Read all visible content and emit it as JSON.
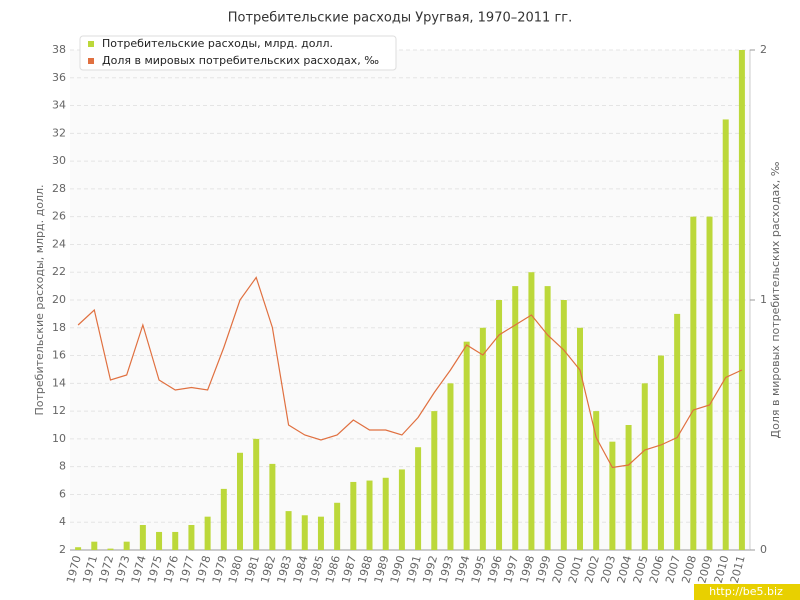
{
  "chart_data": {
    "type": "bar-line",
    "title": "Потребительские расходы Уругвая, 1970–2011 гг.",
    "y_label": "Потребительские расходы, млрд. долл.",
    "y2_label": "Доля в мировых потребительских расходах, ‰",
    "watermark": "http://be5.biz",
    "categories": [
      "1970",
      "1971",
      "1972",
      "1973",
      "1974",
      "1975",
      "1976",
      "1977",
      "1978",
      "1979",
      "1980",
      "1981",
      "1982",
      "1983",
      "1984",
      "1985",
      "1986",
      "1987",
      "1988",
      "1989",
      "1990",
      "1991",
      "1992",
      "1993",
      "1994",
      "1995",
      "1996",
      "1997",
      "1998",
      "1999",
      "2000",
      "2001",
      "2002",
      "2003",
      "2004",
      "2005",
      "2006",
      "2007",
      "2008",
      "2009",
      "2010",
      "2011"
    ],
    "series": [
      {
        "name": "Потребительские расходы, млрд. долл.",
        "type": "bar",
        "color": "#bcd83a",
        "values": [
          2.2,
          2.6,
          2.1,
          2.6,
          3.8,
          3.3,
          3.3,
          3.8,
          4.4,
          6.4,
          9.0,
          10.0,
          8.2,
          4.8,
          4.5,
          4.4,
          5.4,
          6.9,
          7.0,
          7.2,
          7.8,
          9.4,
          12,
          14,
          17,
          18,
          20,
          21,
          22,
          21,
          20,
          18,
          12,
          9.8,
          11,
          14,
          16,
          19,
          26,
          26,
          33,
          38
        ]
      },
      {
        "name": "Доля в мировых потребительских расходах, ‰",
        "type": "line",
        "axis": "y2",
        "color": "#e07040",
        "values": [
          0.9,
          0.96,
          0.68,
          0.7,
          0.9,
          0.68,
          0.64,
          0.65,
          0.64,
          0.81,
          1.0,
          1.09,
          0.89,
          0.5,
          0.46,
          0.44,
          0.46,
          0.52,
          0.48,
          0.48,
          0.46,
          0.53,
          0.63,
          0.72,
          0.82,
          0.78,
          0.86,
          0.9,
          0.94,
          0.86,
          0.8,
          0.72,
          0.45,
          0.33,
          0.34,
          0.4,
          0.42,
          0.45,
          0.56,
          0.58,
          0.69,
          0.72
        ]
      }
    ],
    "ylim": [
      2,
      38
    ],
    "yticks": [
      2,
      4,
      6,
      8,
      10,
      12,
      14,
      16,
      18,
      20,
      22,
      24,
      26,
      28,
      30,
      32,
      34,
      36,
      38
    ],
    "y2lim": [
      0,
      2
    ],
    "y2ticks": [
      0,
      1,
      2
    ],
    "grid": true
  }
}
